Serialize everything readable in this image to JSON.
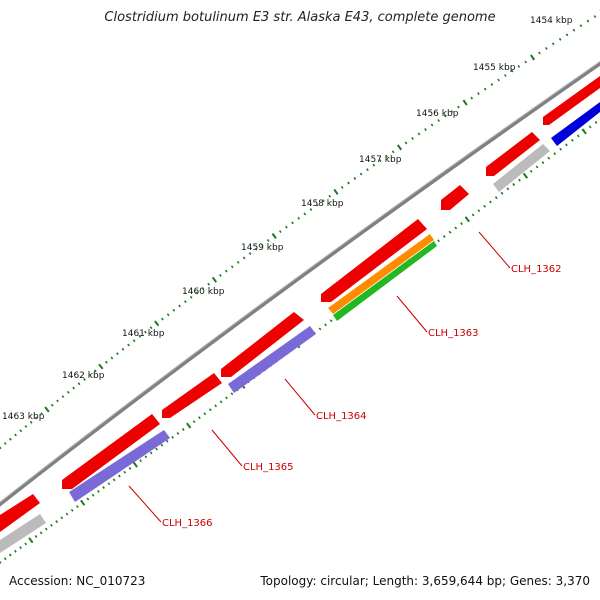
{
  "title": "Clostridium botulinum E3 str. Alaska E43, complete genome",
  "footer": {
    "accession": "Accession: NC_010723",
    "info": "Topology: circular; Length: 3,659,644 bp; Genes: 3,370"
  },
  "ticks": [
    "1454 kbp",
    "1455 kbp",
    "1456 kbp",
    "1457 kbp",
    "1458 kbp",
    "1459 kbp",
    "1460 kbp",
    "1461 kbp",
    "1462 kbp",
    "1463 kbp"
  ],
  "genes": [
    "CLH_1362",
    "CLH_1363",
    "CLH_1364",
    "CLH_1365",
    "CLH_1366"
  ],
  "colors": {
    "backbone": "#808080",
    "gene": "#ee0000",
    "cds_blue": "#0000dd",
    "cds_purple": "#7a6ad8",
    "cds_orange": "#ff8c00",
    "cds_green": "#22b822",
    "cds_gray": "#bbbbbb",
    "tick": "#1a7a1a",
    "label": "#cc0000"
  }
}
